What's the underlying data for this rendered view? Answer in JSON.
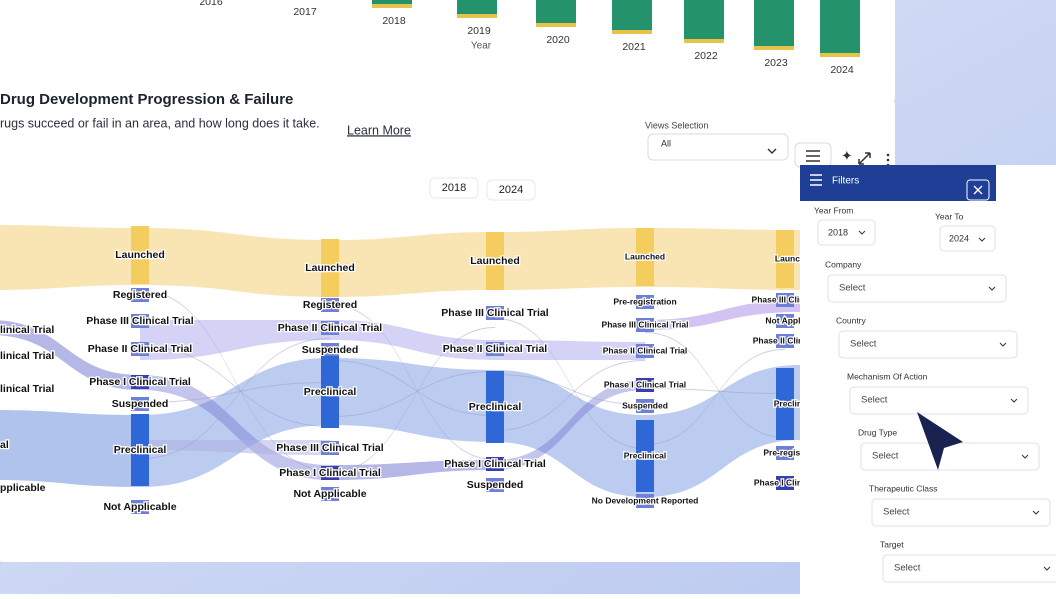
{
  "top_chart": {
    "x_labels": [
      "2016",
      "2017",
      "2018",
      "2019",
      "2020",
      "2021",
      "2022",
      "2023",
      "2024"
    ],
    "x_axis_label": "Year"
  },
  "header": {
    "title": "Drug Development Progression & Failure",
    "subtitle": "rugs succeed or fail in an area, and how long does it take.",
    "link": "Learn More"
  },
  "views": {
    "label": "Views Selection",
    "value": "All"
  },
  "year_toggle": [
    "2018",
    "2024"
  ],
  "sankey": {
    "columns": [
      [
        "linical Trial",
        "linical Trial",
        "linical Trial",
        "al",
        "pplicable"
      ],
      [
        "Launched",
        "Registered",
        "Phase III Clinical Trial",
        "Phase II Clinical Trial",
        "Phase I Clinical Trial",
        "Suspended",
        "Preclinical",
        "Not Applicable"
      ],
      [
        "Launched",
        "Registered",
        "Phase II Clinical Trial",
        "Suspended",
        "Preclinical",
        "Phase III Clinical Trial",
        "Phase I Clinical Trial",
        "Not Applicable"
      ],
      [
        "Launched",
        "Phase III Clinical Trial",
        "Phase II Clinical Trial",
        "Preclinical",
        "Phase I Clinical Trial",
        "Suspended"
      ],
      [
        "Launched",
        "Pre-registration",
        "Phase III Clinical Trial",
        "Phase II Clinical Trial",
        "Phase I Clinical Trial",
        "Suspended",
        "Preclinical",
        "No Development Reported"
      ],
      [
        "Launched",
        "Phase III Clinical Trial",
        "Not Applicable",
        "Phase II Clinical Trial",
        "Preclinical",
        "Pre-registration",
        "Phase I Clinical Trial"
      ]
    ]
  },
  "filters": {
    "title": "Filters",
    "year_from": {
      "label": "Year From",
      "value": "2018"
    },
    "year_to": {
      "label": "Year To",
      "value": "2024"
    },
    "fields": [
      {
        "label": "Company",
        "placeholder": "Select"
      },
      {
        "label": "Country",
        "placeholder": "Select"
      },
      {
        "label": "Mechanism Of Action",
        "placeholder": "Select"
      },
      {
        "label": "Drug Type",
        "placeholder": "Select"
      },
      {
        "label": "Therapeutic Class",
        "placeholder": "Select"
      },
      {
        "label": "Target",
        "placeholder": "Select"
      }
    ]
  }
}
